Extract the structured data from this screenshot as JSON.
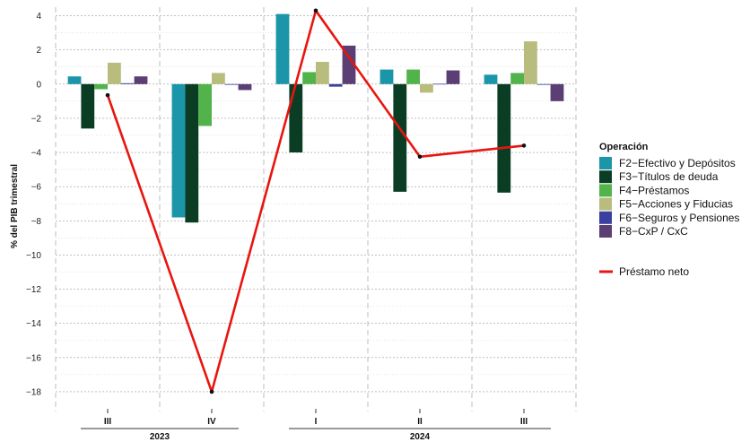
{
  "chart_data": {
    "type": "bar",
    "ylabel": "% del PIB trimestral",
    "ylim": [
      -19,
      4.5
    ],
    "yticks": [
      4,
      2,
      0,
      -2,
      -4,
      -6,
      -8,
      -10,
      -12,
      -14,
      -16,
      -18
    ],
    "categories": [
      "III",
      "IV",
      "I",
      "II",
      "III"
    ],
    "years": [
      {
        "label": "2023",
        "categories": [
          "III",
          "IV"
        ]
      },
      {
        "label": "2024",
        "categories": [
          "I",
          "II",
          "III"
        ]
      }
    ],
    "legend_title": "Operación",
    "legend_position": "right",
    "grid": true,
    "series": [
      {
        "name": "F2−Efectivo y Depósitos",
        "color": "#1a96a8",
        "values": [
          0.45,
          -7.8,
          4.1,
          0.85,
          0.55
        ]
      },
      {
        "name": "F3−Títulos de deuda",
        "color": "#0b3d25",
        "values": [
          -2.6,
          -8.1,
          -4.0,
          -6.3,
          -6.35
        ]
      },
      {
        "name": "F4−Préstamos",
        "color": "#52b34a",
        "values": [
          -0.3,
          -2.45,
          0.7,
          0.85,
          0.65
        ]
      },
      {
        "name": "F5−Acciones y Fiducias",
        "color": "#b8bc7c",
        "values": [
          1.25,
          0.65,
          1.3,
          -0.5,
          2.5
        ]
      },
      {
        "name": "F6−Seguros y Pensiones",
        "color": "#3a3fa0",
        "values": [
          0.05,
          0.0,
          -0.15,
          0.02,
          0.0
        ]
      },
      {
        "name": "F8−CxP / CxC",
        "color": "#5b3e73",
        "values": [
          0.45,
          -0.35,
          2.25,
          0.8,
          -1.0
        ]
      }
    ],
    "line": {
      "name": "Préstamo neto",
      "color": "#e8150f",
      "values": [
        -0.65,
        -18.0,
        4.3,
        -4.25,
        -3.6
      ]
    }
  }
}
